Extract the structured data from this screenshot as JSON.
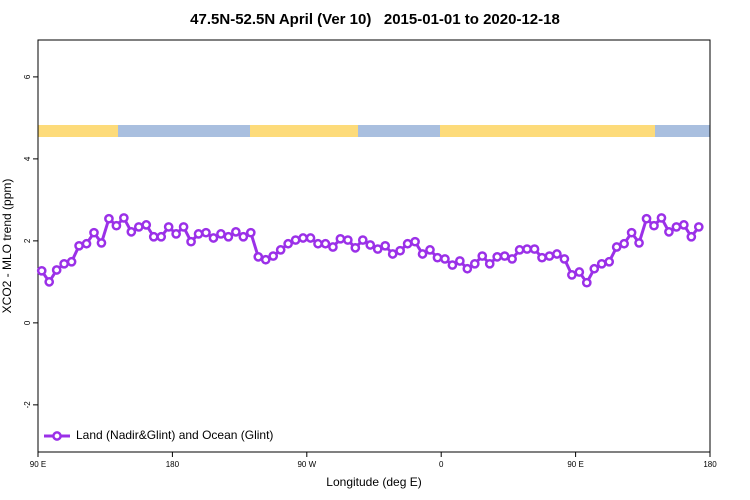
{
  "chart_data": {
    "type": "line",
    "title": "47.5N-52.5N April (Ver 10)   2015-01-01 to 2020-12-18",
    "xlabel": "Longitude (deg E)",
    "ylabel": "XCO2 - MLO trend (ppm)",
    "xlim": [
      90,
      540
    ],
    "ylim": [
      -3.15,
      6.9
    ],
    "xticks": [
      {
        "value": 90,
        "label": "90 E"
      },
      180,
      {
        "value": 270,
        "label": "90 W"
      },
      {
        "value": 360,
        "label": "0"
      },
      {
        "value": 450,
        "label": "90 E"
      },
      {
        "value": 540,
        "label": "180"
      }
    ],
    "yticks": [
      -2,
      0,
      2,
      4,
      6
    ],
    "legend": "bottom-left",
    "x": [
      92.5,
      97.5,
      102.5,
      107.5,
      112.5,
      117.5,
      122.5,
      127.5,
      132.5,
      137.5,
      142.5,
      147.5,
      152.5,
      157.5,
      162.5,
      167.5,
      172.5,
      177.5,
      182.5,
      187.5,
      192.5,
      197.5,
      202.5,
      207.5,
      212.5,
      217.5,
      222.5,
      227.5,
      232.5,
      237.5,
      242.5,
      247.5,
      252.5,
      257.5,
      262.5,
      267.5,
      272.5,
      277.5,
      282.5,
      287.5,
      292.5,
      297.5,
      302.5,
      307.5,
      312.5,
      317.5,
      322.5,
      327.5,
      332.5,
      337.5,
      342.5,
      347.5,
      352.5,
      357.5,
      362.5,
      367.5,
      372.5,
      377.5,
      382.5,
      387.5,
      392.5,
      397.5,
      402.5,
      407.5,
      412.5,
      417.5,
      422.5,
      427.5,
      432.5,
      437.5,
      442.5,
      447.5,
      452.5,
      457.5,
      462.5,
      467.5,
      472.5,
      477.5,
      482.5,
      487.5,
      492.5,
      497.5,
      502.5,
      507.5,
      512.5,
      517.5,
      522.5,
      527.5,
      532.5
    ],
    "series": [
      {
        "name": "Land (Nadir&Glint) and Ocean (Glint)",
        "color": "#9b30e8",
        "values": [
          1.27,
          1.0,
          1.29,
          1.44,
          1.49,
          1.88,
          1.93,
          2.2,
          1.95,
          2.54,
          2.37,
          2.56,
          2.22,
          2.34,
          2.39,
          2.1,
          2.1,
          2.34,
          2.17,
          2.34,
          1.98,
          2.17,
          2.2,
          2.07,
          2.17,
          2.1,
          2.22,
          2.1,
          2.2,
          1.61,
          1.54,
          1.63,
          1.78,
          1.93,
          2.02,
          2.07,
          2.07,
          1.93,
          1.93,
          1.85,
          2.05,
          2.02,
          1.83,
          2.02,
          1.9,
          1.8,
          1.88,
          1.68,
          1.76,
          1.93,
          1.98,
          1.68,
          1.78,
          1.59,
          1.56,
          1.41,
          1.51,
          1.32,
          1.44,
          1.63,
          1.44,
          1.61,
          1.63,
          1.56,
          1.78,
          1.8,
          1.8,
          1.59,
          1.63,
          1.68,
          1.56,
          1.17,
          1.24,
          0.98,
          1.32,
          1.44,
          1.49,
          1.85,
          1.93,
          2.2,
          1.95,
          2.54,
          2.37,
          2.56,
          2.22,
          2.34,
          2.39,
          2.1,
          2.34
        ]
      }
    ]
  }
}
